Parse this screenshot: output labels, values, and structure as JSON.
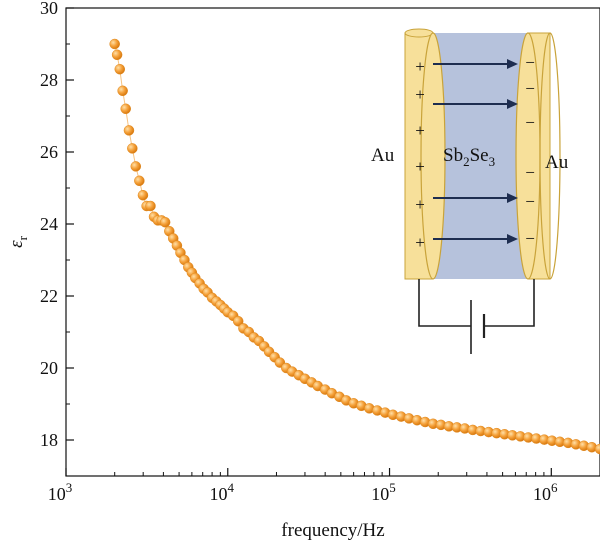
{
  "chart_data": {
    "type": "scatter",
    "xlabel": "frequency/Hz",
    "ylabel_symbol": "ε",
    "ylabel_sub": "r",
    "xscale": "log",
    "xlim": [
      1000,
      2000000
    ],
    "ylim": [
      17,
      30
    ],
    "yticks": [
      18,
      20,
      22,
      24,
      26,
      28,
      30
    ],
    "ytick_labels": [
      "18",
      "20",
      "22",
      "24",
      "26",
      "28",
      "30"
    ],
    "xticks": [
      {
        "value": 1000,
        "base": "10",
        "exp": "3"
      },
      {
        "value": 10000,
        "base": "10",
        "exp": "4"
      },
      {
        "value": 100000,
        "base": "10",
        "exp": "5"
      },
      {
        "value": 1000000,
        "base": "10",
        "exp": "6"
      }
    ],
    "grid": false,
    "series": [
      {
        "marker_color": "#F29B2E",
        "x": [
          2000,
          2070,
          2150,
          2240,
          2340,
          2450,
          2570,
          2700,
          2840,
          2990,
          3150,
          3330,
          3500,
          3700,
          3900,
          4100,
          4350,
          4600,
          4850,
          5100,
          5400,
          5700,
          6000,
          6300,
          6700,
          7100,
          7500,
          8000,
          8500,
          9000,
          9500,
          10000,
          10800,
          11600,
          12500,
          13500,
          14500,
          15600,
          16800,
          18000,
          19500,
          21000,
          23000,
          25000,
          27500,
          30000,
          33000,
          36000,
          40000,
          44000,
          49000,
          54000,
          60000,
          67000,
          75000,
          84000,
          94000,
          105000,
          118000,
          132000,
          148000,
          166000,
          186000,
          208000,
          233000,
          261000,
          292000,
          327000,
          366000,
          410000,
          459000,
          514000,
          575000,
          644000,
          721000,
          808000,
          905000,
          1010000,
          1130000,
          1270000,
          1420000,
          1590000,
          1780000,
          2000000
        ],
        "y": [
          29.0,
          28.7,
          28.3,
          27.7,
          27.2,
          26.6,
          26.1,
          25.6,
          25.2,
          24.8,
          24.5,
          24.5,
          24.2,
          24.1,
          24.1,
          24.05,
          23.8,
          23.6,
          23.4,
          23.2,
          23.0,
          22.8,
          22.65,
          22.5,
          22.35,
          22.2,
          22.1,
          21.95,
          21.85,
          21.75,
          21.65,
          21.55,
          21.45,
          21.3,
          21.1,
          21.0,
          20.85,
          20.75,
          20.6,
          20.45,
          20.3,
          20.15,
          20.0,
          19.9,
          19.8,
          19.7,
          19.6,
          19.5,
          19.4,
          19.3,
          19.2,
          19.1,
          19.02,
          18.95,
          18.88,
          18.82,
          18.76,
          18.7,
          18.65,
          18.6,
          18.55,
          18.5,
          18.45,
          18.42,
          18.38,
          18.35,
          18.32,
          18.28,
          18.25,
          18.22,
          18.19,
          18.16,
          18.13,
          18.1,
          18.07,
          18.04,
          18.01,
          17.98,
          17.95,
          17.92,
          17.88,
          17.84,
          17.8,
          17.75
        ]
      }
    ]
  },
  "inset": {
    "left_label": "Au",
    "right_label": "Au",
    "center_label_main": "Sb",
    "center_label_sub1": "2",
    "center_label_main2": "Se",
    "center_label_sub2": "3",
    "plus_signs": [
      "+",
      "+",
      "+",
      "+",
      "+",
      "+"
    ],
    "minus_signs": [
      "−",
      "−",
      "−",
      "−",
      "−",
      "−"
    ],
    "colors": {
      "gold": "#F7E09A",
      "gold_edge": "#C9A33A",
      "semiconductor": "#A9B7D6",
      "arrow": "#1E2D50"
    }
  }
}
